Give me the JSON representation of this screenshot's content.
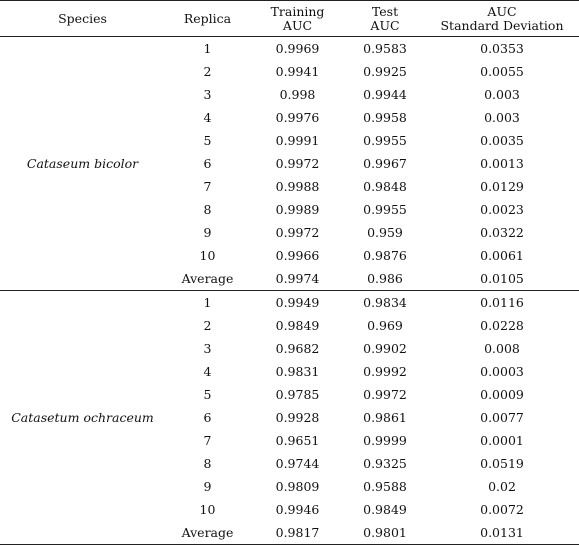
{
  "table": {
    "header": [
      "Species",
      "Replica",
      "Training\nAUC",
      "Test\nAUC",
      "AUC\nStandard Deviation"
    ],
    "groups": [
      {
        "species": "Cataseum bicolor",
        "rows": [
          [
            "1",
            "0.9969",
            "0.9583",
            "0.0353"
          ],
          [
            "2",
            "0.9941",
            "0.9925",
            "0.0055"
          ],
          [
            "3",
            "0.998",
            "0.9944",
            "0.003"
          ],
          [
            "4",
            "0.9976",
            "0.9958",
            "0.003"
          ],
          [
            "5",
            "0.9991",
            "0.9955",
            "0.0035"
          ],
          [
            "6",
            "0.9972",
            "0.9967",
            "0.0013"
          ],
          [
            "7",
            "0.9988",
            "0.9848",
            "0.0129"
          ],
          [
            "8",
            "0.9989",
            "0.9955",
            "0.0023"
          ],
          [
            "9",
            "0.9972",
            "0.959",
            "0.0322"
          ],
          [
            "10",
            "0.9966",
            "0.9876",
            "0.0061"
          ],
          [
            "Average",
            "0.9974",
            "0.986",
            "0.0105"
          ]
        ]
      },
      {
        "species": "Catasetum ochraceum",
        "rows": [
          [
            "1",
            "0.9949",
            "0.9834",
            "0.0116"
          ],
          [
            "2",
            "0.9849",
            "0.969",
            "0.0228"
          ],
          [
            "3",
            "0.9682",
            "0.9902",
            "0.008"
          ],
          [
            "4",
            "0.9831",
            "0.9992",
            "0.0003"
          ],
          [
            "5",
            "0.9785",
            "0.9972",
            "0.0009"
          ],
          [
            "6",
            "0.9928",
            "0.9861",
            "0.0077"
          ],
          [
            "7",
            "0.9651",
            "0.9999",
            "0.0001"
          ],
          [
            "8",
            "0.9744",
            "0.9325",
            "0.0519"
          ],
          [
            "9",
            "0.9809",
            "0.9588",
            "0.02"
          ],
          [
            "10",
            "0.9946",
            "0.9849",
            "0.0072"
          ],
          [
            "Average",
            "0.9817",
            "0.9801",
            "0.0131"
          ]
        ]
      }
    ]
  }
}
